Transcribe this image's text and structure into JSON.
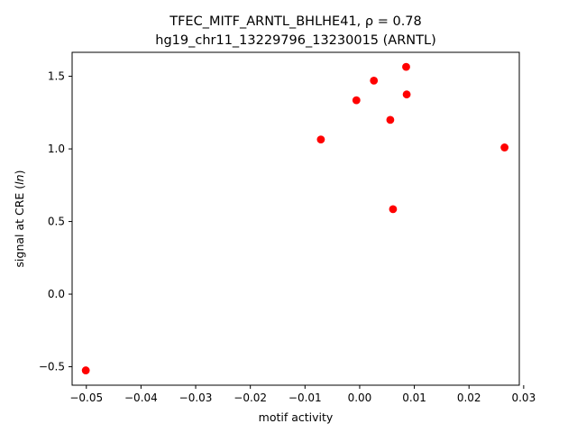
{
  "chart_data": {
    "type": "scatter",
    "title_line1": "TFEC_MITF_ARNTL_BHLHE41, ρ = 0.78",
    "title_line2": "hg19_chr11_13229796_13230015 (ARNTL)",
    "xlabel": "motif activity",
    "ylabel": "signal at CRE (ln)",
    "xlim": [
      -0.0526,
      0.0292
    ],
    "ylim": [
      -0.627,
      1.665
    ],
    "xticks": [
      -0.05,
      -0.04,
      -0.03,
      -0.02,
      -0.01,
      0.0,
      0.01,
      0.02,
      0.03
    ],
    "xtick_labels": [
      "−0.05",
      "−0.04",
      "−0.03",
      "−0.02",
      "−0.01",
      "0.00",
      "0.01",
      "0.02",
      "0.03"
    ],
    "yticks": [
      -0.5,
      0.0,
      0.5,
      1.0,
      1.5
    ],
    "ytick_labels": [
      "−0.5",
      "0.0",
      "0.5",
      "1.0",
      "1.5"
    ],
    "marker_color": "#ff0000",
    "grid": false,
    "points": [
      {
        "x": -0.0501,
        "y": -0.525
      },
      {
        "x": -0.0071,
        "y": 1.065
      },
      {
        "x": -0.0006,
        "y": 1.335
      },
      {
        "x": 0.0026,
        "y": 1.47
      },
      {
        "x": 0.0056,
        "y": 1.2
      },
      {
        "x": 0.0061,
        "y": 0.585
      },
      {
        "x": 0.0085,
        "y": 1.565
      },
      {
        "x": 0.0086,
        "y": 1.375
      },
      {
        "x": 0.0265,
        "y": 1.01
      }
    ]
  }
}
